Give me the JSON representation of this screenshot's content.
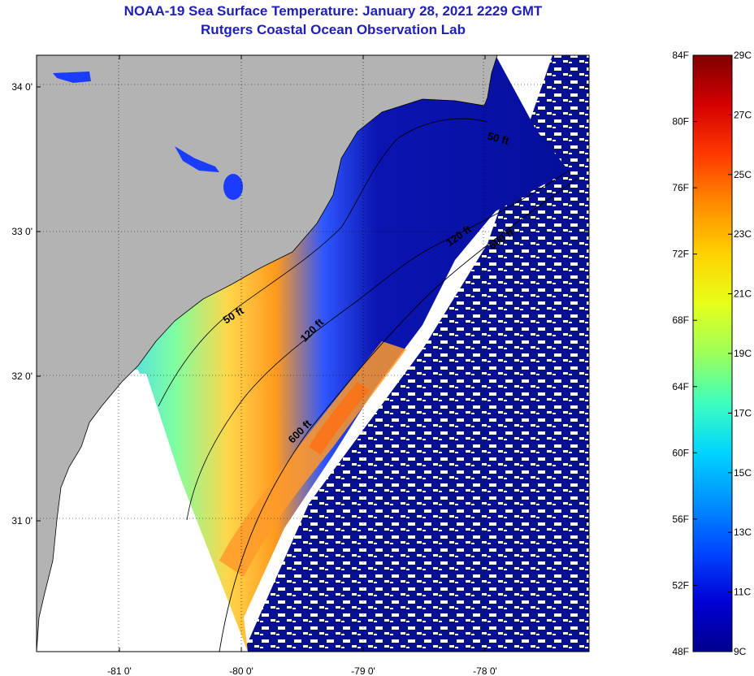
{
  "title": "NOAA-19 Sea Surface Temperature:  January 28, 2021 2229 GMT",
  "subtitle": "Rutgers Coastal Ocean Observation Lab",
  "lat_ticks": [
    {
      "label": "34 0'",
      "value": 34.0
    },
    {
      "label": "33 0'",
      "value": 33.0
    },
    {
      "label": "32 0'",
      "value": 32.0
    },
    {
      "label": "31 0'",
      "value": 31.0
    }
  ],
  "lon_ticks": [
    {
      "label": "-81 0'",
      "value": -81.0
    },
    {
      "label": "-80 0'",
      "value": -80.0
    },
    {
      "label": "-79 0'",
      "value": -79.0
    },
    {
      "label": "-78 0'",
      "value": -78.0
    }
  ],
  "contour_labels": [
    {
      "text": "50 ft",
      "lon": -80.05,
      "lat": 32.4,
      "angle": -32
    },
    {
      "text": "50 ft",
      "lon": -77.9,
      "lat": 33.62,
      "angle": 15
    },
    {
      "text": "120 ft",
      "lon": -79.4,
      "lat": 32.3,
      "angle": -45
    },
    {
      "text": "120 ft",
      "lon": -78.2,
      "lat": 32.95,
      "angle": -35
    },
    {
      "text": "600 ft",
      "lon": -79.5,
      "lat": 31.6,
      "angle": -45
    },
    {
      "text": "600 ft",
      "lon": -77.85,
      "lat": 32.93,
      "angle": -35
    }
  ],
  "colorbar": {
    "labels_f": [
      "84F",
      "80F",
      "76F",
      "72F",
      "68F",
      "64F",
      "60F",
      "56F",
      "52F",
      "48F"
    ],
    "labels_c": [
      "29C",
      "27C",
      "25C",
      "23C",
      "21C",
      "19C",
      "17C",
      "15C",
      "13C",
      "11C",
      "9C"
    ],
    "colors": [
      "#7f0000",
      "#d40000",
      "#ff3a00",
      "#ff8c00",
      "#ffd200",
      "#e6ff1a",
      "#9dff5a",
      "#3dffbe",
      "#00d4ff",
      "#0090ff",
      "#0046ff",
      "#0000d6",
      "#00008c"
    ]
  }
}
